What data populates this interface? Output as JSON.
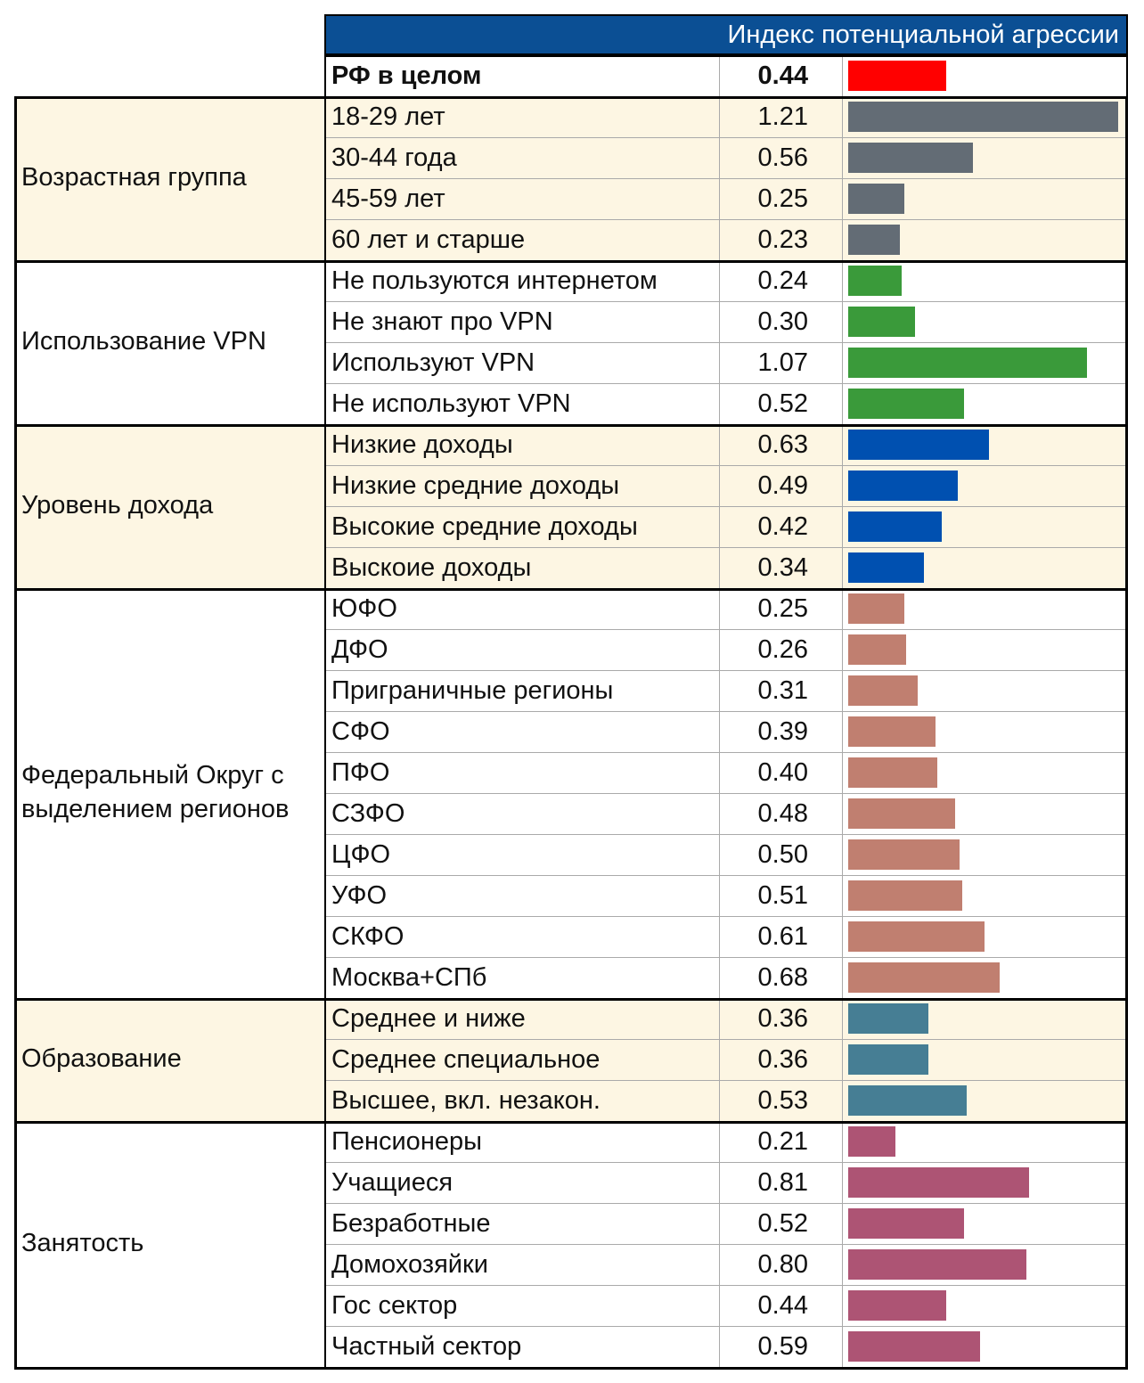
{
  "header": {
    "title": "Индекс потенциальной агрессии"
  },
  "overall": {
    "label": "РФ в целом",
    "value": 0.44,
    "value_label": "0.44",
    "color": "#ff0000"
  },
  "groups": [
    {
      "name": "Возрастная группа",
      "color": "#636c75",
      "shaded": true,
      "rows": [
        {
          "label": "18-29 лет",
          "value": 1.21,
          "value_label": "1.21"
        },
        {
          "label": "30-44 года",
          "value": 0.56,
          "value_label": "0.56"
        },
        {
          "label": "45-59 лет",
          "value": 0.25,
          "value_label": "0.25"
        },
        {
          "label": "60 лет и старше",
          "value": 0.23,
          "value_label": "0.23"
        }
      ]
    },
    {
      "name": "Использование VPN",
      "color": "#3a9a3a",
      "shaded": false,
      "rows": [
        {
          "label": "Не пользуются интернетом",
          "value": 0.24,
          "value_label": "0.24"
        },
        {
          "label": "Не знают про VPN",
          "value": 0.3,
          "value_label": "0.30"
        },
        {
          "label": "Используют VPN",
          "value": 1.07,
          "value_label": "1.07"
        },
        {
          "label": "Не используют VPN",
          "value": 0.52,
          "value_label": "0.52"
        }
      ]
    },
    {
      "name": "Уровень дохода",
      "color": "#0050b0",
      "shaded": true,
      "rows": [
        {
          "label": "Низкие доходы",
          "value": 0.63,
          "value_label": "0.63"
        },
        {
          "label": "Низкие средние доходы",
          "value": 0.49,
          "value_label": "0.49"
        },
        {
          "label": "Высокие средние доходы",
          "value": 0.42,
          "value_label": "0.42"
        },
        {
          "label": "Выскоие доходы",
          "value": 0.34,
          "value_label": "0.34"
        }
      ]
    },
    {
      "name": "Федеральный Округ с выделением регионов",
      "color": "#c07f70",
      "shaded": false,
      "rows": [
        {
          "label": "ЮФО",
          "value": 0.25,
          "value_label": "0.25"
        },
        {
          "label": "ДФО",
          "value": 0.26,
          "value_label": "0.26"
        },
        {
          "label": "Приграничные регионы",
          "value": 0.31,
          "value_label": "0.31"
        },
        {
          "label": "СФО",
          "value": 0.39,
          "value_label": "0.39"
        },
        {
          "label": "ПФО",
          "value": 0.4,
          "value_label": "0.40"
        },
        {
          "label": "СЗФО",
          "value": 0.48,
          "value_label": "0.48"
        },
        {
          "label": "ЦФО",
          "value": 0.5,
          "value_label": "0.50"
        },
        {
          "label": "УФО",
          "value": 0.51,
          "value_label": "0.51"
        },
        {
          "label": "СКФО",
          "value": 0.61,
          "value_label": "0.61"
        },
        {
          "label": "Москва+СПб",
          "value": 0.68,
          "value_label": "0.68"
        }
      ]
    },
    {
      "name": "Образование",
      "color": "#467e94",
      "shaded": true,
      "rows": [
        {
          "label": "Среднее и ниже",
          "value": 0.36,
          "value_label": "0.36"
        },
        {
          "label": "Среднее специальное",
          "value": 0.36,
          "value_label": "0.36"
        },
        {
          "label": "Высшее, вкл. незакон.",
          "value": 0.53,
          "value_label": "0.53"
        }
      ]
    },
    {
      "name": "Занятость",
      "color": "#ad5474",
      "shaded": false,
      "rows": [
        {
          "label": "Пенсионеры",
          "value": 0.21,
          "value_label": "0.21"
        },
        {
          "label": "Учащиеся",
          "value": 0.81,
          "value_label": "0.81"
        },
        {
          "label": "Безработные",
          "value": 0.52,
          "value_label": "0.52"
        },
        {
          "label": "Домохозяйки",
          "value": 0.8,
          "value_label": "0.80"
        },
        {
          "label": "Гос сектор",
          "value": 0.44,
          "value_label": "0.44"
        },
        {
          "label": "Частный сектор",
          "value": 0.59,
          "value_label": "0.59"
        }
      ]
    }
  ]
}
